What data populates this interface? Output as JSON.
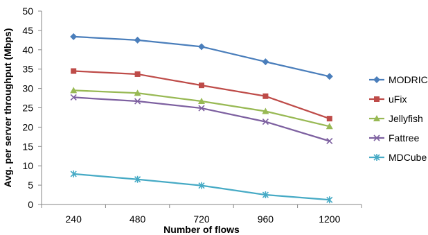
{
  "chart_data": {
    "type": "line",
    "title": "",
    "xlabel": "Number of flows",
    "ylabel": "Avg. per server throughput (Mbps)",
    "categories": [
      "240",
      "480",
      "720",
      "960",
      "1200"
    ],
    "ylim": [
      0,
      50
    ],
    "yticks": [
      "0",
      "5",
      "10",
      "15",
      "20",
      "25",
      "30",
      "35",
      "40",
      "45",
      "50"
    ],
    "grid": false,
    "legend_position": "right",
    "series": [
      {
        "name": "MODRIC",
        "values": [
          43.4,
          42.5,
          40.8,
          36.9,
          33.1
        ],
        "color": "#4a7ebb",
        "marker": "diamond"
      },
      {
        "name": "uFix",
        "values": [
          34.5,
          33.7,
          30.8,
          28.0,
          22.2
        ],
        "color": "#be4b48",
        "marker": "square"
      },
      {
        "name": "Jellyfish",
        "values": [
          29.5,
          28.8,
          26.7,
          24.1,
          20.2
        ],
        "color": "#98b954",
        "marker": "triangle"
      },
      {
        "name": "Fattree",
        "values": [
          27.7,
          26.7,
          24.9,
          21.4,
          16.4
        ],
        "color": "#7d60a0",
        "marker": "x"
      },
      {
        "name": "MDCube",
        "values": [
          7.9,
          6.5,
          4.9,
          2.5,
          1.2
        ],
        "color": "#46aac5",
        "marker": "star"
      }
    ]
  }
}
